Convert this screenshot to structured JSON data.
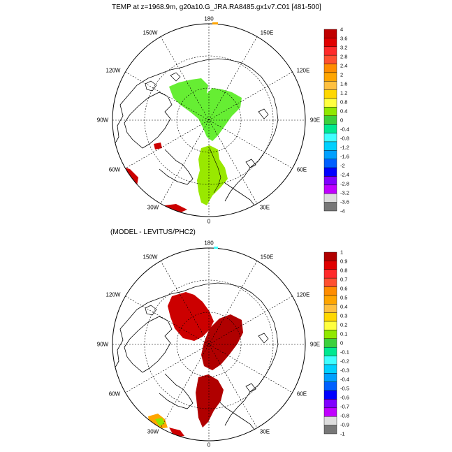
{
  "top_title": "TEMP at z=1968.9m, g20a10.G_JRA.RA8485.gx1v7.C01 [481-500]",
  "bottom_title": "(MODEL - LEVITUS/PHC2)",
  "longitude_labels": [
    "180",
    "150W",
    "150E",
    "120W",
    "120E",
    "90W",
    "90E",
    "60W",
    "60E",
    "30W",
    "30E",
    "0"
  ],
  "colorbar_top": {
    "ticks": [
      "4",
      "3.6",
      "3.2",
      "2.8",
      "2.4",
      "2",
      "1.6",
      "1.2",
      "0.8",
      "0.4",
      "0",
      "-0.4",
      "-0.8",
      "-1.2",
      "-1.6",
      "-2",
      "-2.4",
      "-2.8",
      "-3.2",
      "-3.6",
      "-4"
    ],
    "colors": [
      "#c00000",
      "#e00000",
      "#ff2a2a",
      "#ff5030",
      "#ff8c00",
      "#ffa500",
      "#ffc040",
      "#ffd700",
      "#ffff40",
      "#90e800",
      "#3cd03c",
      "#00e890",
      "#40ffff",
      "#00d0ff",
      "#00a0ff",
      "#0060ff",
      "#0000ff",
      "#8000ff",
      "#c000ff",
      "#dddddd",
      "#777777"
    ]
  },
  "colorbar_bottom": {
    "ticks": [
      "1",
      "0.9",
      "0.8",
      "0.7",
      "0.6",
      "0.5",
      "0.4",
      "0.3",
      "0.2",
      "0.1",
      "0",
      "-0.1",
      "-0.2",
      "-0.3",
      "-0.4",
      "-0.5",
      "-0.6",
      "-0.7",
      "-0.8",
      "-0.9",
      "-1"
    ],
    "colors": [
      "#b00000",
      "#e00000",
      "#ff2a2a",
      "#ff5030",
      "#ff8c00",
      "#ffa500",
      "#ffc040",
      "#ffd700",
      "#ffff40",
      "#90e800",
      "#3cd03c",
      "#00e890",
      "#40ffff",
      "#00d0ff",
      "#00a0ff",
      "#0060ff",
      "#0000ff",
      "#8000ff",
      "#c000ff",
      "#dddddd",
      "#777777"
    ]
  },
  "fill_colors": {
    "top_main": "#66ee33",
    "top_alt": "#99e800",
    "bottom_main": "#cc0000",
    "bottom_dark": "#b00000",
    "edge_red": "#cc0000"
  }
}
